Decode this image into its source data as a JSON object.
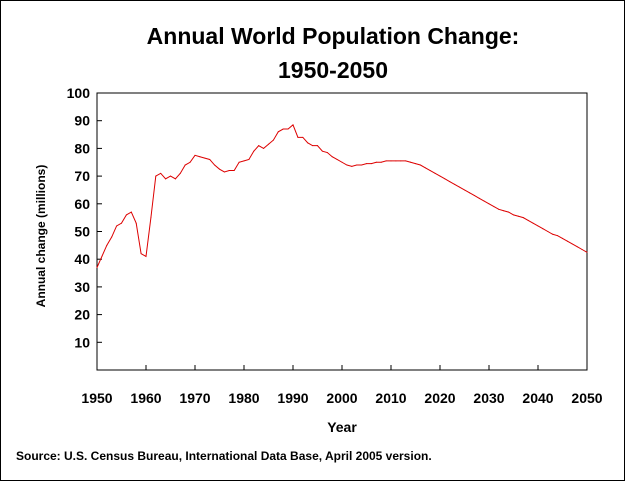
{
  "chart_data": {
    "type": "line",
    "title_line1": "Annual World Population Change:",
    "title_line2": "1950-2050",
    "xlabel": "Year",
    "ylabel": "Annual change (millions)",
    "source": "Source: U.S. Census Bureau, International Data Base, April 2005 version.",
    "xlim": [
      1950,
      2050
    ],
    "ylim": [
      0,
      100
    ],
    "x_ticks": [
      1950,
      1960,
      1970,
      1980,
      1990,
      2000,
      2010,
      2020,
      2030,
      2040,
      2050
    ],
    "y_ticks": [
      10,
      20,
      30,
      40,
      50,
      60,
      70,
      80,
      90,
      100
    ],
    "x_tick_labels": [
      "1950",
      "1960",
      "1970",
      "1980",
      "1990",
      "2000",
      "2010",
      "2020",
      "2030",
      "2040",
      "2050"
    ],
    "y_tick_labels": [
      "10",
      "20",
      "30",
      "40",
      "50",
      "60",
      "70",
      "80",
      "90",
      "100"
    ],
    "grid": false,
    "line_color": "#dd0000",
    "series": [
      {
        "name": "Annual change",
        "x": [
          1950,
          1951,
          1952,
          1953,
          1954,
          1955,
          1956,
          1957,
          1958,
          1959,
          1960,
          1961,
          1962,
          1963,
          1964,
          1965,
          1966,
          1967,
          1968,
          1969,
          1970,
          1971,
          1972,
          1973,
          1974,
          1975,
          1976,
          1977,
          1978,
          1979,
          1980,
          1981,
          1982,
          1983,
          1984,
          1985,
          1986,
          1987,
          1988,
          1989,
          1990,
          1991,
          1992,
          1993,
          1994,
          1995,
          1996,
          1997,
          1998,
          1999,
          2000,
          2001,
          2002,
          2003,
          2004,
          2005,
          2006,
          2007,
          2008,
          2009,
          2010,
          2011,
          2012,
          2013,
          2014,
          2015,
          2016,
          2017,
          2018,
          2019,
          2020,
          2021,
          2022,
          2023,
          2024,
          2025,
          2026,
          2027,
          2028,
          2029,
          2030,
          2031,
          2032,
          2033,
          2034,
          2035,
          2036,
          2037,
          2038,
          2039,
          2040,
          2041,
          2042,
          2043,
          2044,
          2045,
          2046,
          2047,
          2048,
          2049,
          2050
        ],
        "values": [
          37,
          41,
          45,
          48,
          52,
          53,
          56,
          57,
          53,
          42,
          41,
          55,
          70,
          71,
          69,
          70,
          69,
          71,
          74,
          75,
          77.5,
          77,
          76.5,
          76,
          74,
          72.5,
          71.5,
          72,
          72,
          75,
          75.5,
          76,
          79,
          81,
          80,
          81.5,
          83,
          86,
          87,
          87,
          88.5,
          84,
          84,
          82,
          81,
          81,
          79,
          78.5,
          77,
          76,
          75,
          74,
          73.5,
          74,
          74,
          74.5,
          74.5,
          75,
          75,
          75.5,
          75.5,
          75.5,
          75.5,
          75.5,
          75,
          74.5,
          74,
          73,
          72,
          71,
          70,
          69,
          68,
          67,
          66,
          65,
          64,
          63,
          62,
          61,
          60,
          59,
          58,
          57.5,
          57,
          56,
          55.5,
          55,
          54,
          53,
          52,
          51,
          50,
          49,
          48.5,
          47.5,
          46.5,
          45.5,
          44.5,
          43.5,
          42.5
        ]
      }
    ]
  }
}
